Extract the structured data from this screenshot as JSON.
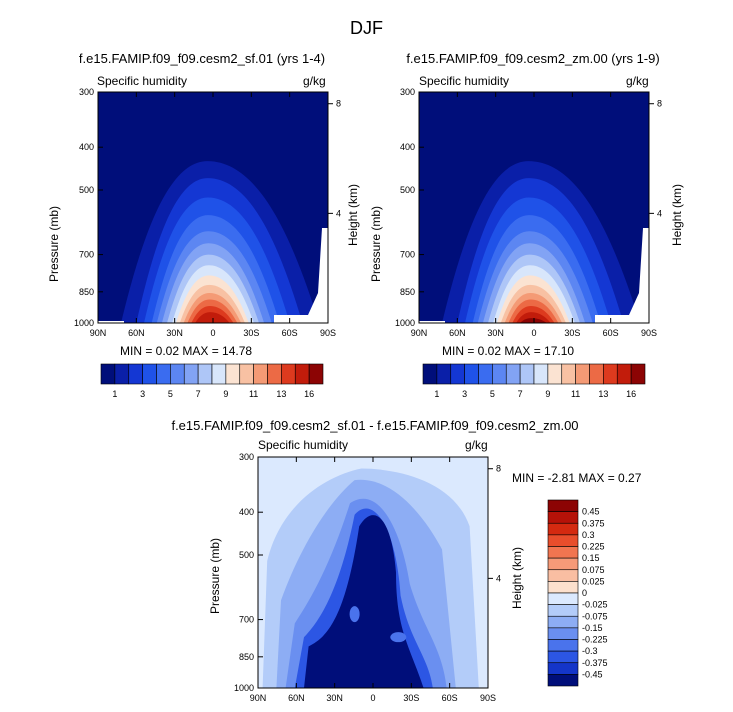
{
  "page": {
    "title": "DJF"
  },
  "colors": {
    "frame": "#000000",
    "deep_blue": "#000e7a",
    "diff_background": "#d5e6ff",
    "white": "#ffffff"
  },
  "chart_data": [
    {
      "type": "heatmap",
      "title": "f.e15.FAMIP.f09_f09.cesm2_sf.01 (yrs 1-4)",
      "variable": "Specific humidity",
      "units": "g/kg",
      "ylabel": "Pressure (mb)",
      "ylabel_right": "Height (km)",
      "x_ticks": [
        "90N",
        "60N",
        "30N",
        "0",
        "30S",
        "60S",
        "90S"
      ],
      "y_ticks": [
        1000,
        850,
        700,
        500,
        400,
        300
      ],
      "height_ticks": [
        4,
        8
      ],
      "ylim": [
        1000,
        300
      ],
      "stats": "MIN =  0.02  MAX = 14.78",
      "min": 0.02,
      "max": 14.78,
      "colorbar_labels": [
        "1",
        "3",
        "5",
        "7",
        "9",
        "11",
        "13",
        "16"
      ],
      "colorbar_colors": [
        "#000e7a",
        "#0a1fa8",
        "#1437d3",
        "#1f52e8",
        "#3a6cf0",
        "#5c86f2",
        "#82a3f4",
        "#aec6f7",
        "#d8e6fb",
        "#fbe3d2",
        "#f8c1a3",
        "#f49a75",
        "#ec6a45",
        "#dd3a1e",
        "#c21c0b",
        "#8c0404"
      ],
      "peak": {
        "lat": 0,
        "pressure": 1000,
        "value": 14.78
      }
    },
    {
      "type": "heatmap",
      "title": "f.e15.FAMIP.f09_f09.cesm2_zm.00 (yrs 1-9)",
      "variable": "Specific humidity",
      "units": "g/kg",
      "ylabel": "Pressure (mb)",
      "ylabel_right": "Height (km)",
      "x_ticks": [
        "90N",
        "60N",
        "30N",
        "0",
        "30S",
        "60S",
        "90S"
      ],
      "y_ticks": [
        1000,
        850,
        700,
        500,
        400,
        300
      ],
      "height_ticks": [
        4,
        8
      ],
      "ylim": [
        1000,
        300
      ],
      "stats": "MIN =  0.02  MAX = 17.10",
      "min": 0.02,
      "max": 17.1,
      "colorbar_labels": [
        "1",
        "3",
        "5",
        "7",
        "9",
        "11",
        "13",
        "16"
      ],
      "colorbar_colors": [
        "#000e7a",
        "#0a1fa8",
        "#1437d3",
        "#1f52e8",
        "#3a6cf0",
        "#5c86f2",
        "#82a3f4",
        "#aec6f7",
        "#d8e6fb",
        "#fbe3d2",
        "#f8c1a3",
        "#f49a75",
        "#ec6a45",
        "#dd3a1e",
        "#c21c0b",
        "#8c0404"
      ],
      "peak": {
        "lat": 0,
        "pressure": 1000,
        "value": 17.1
      }
    },
    {
      "type": "heatmap",
      "title": "f.e15.FAMIP.f09_f09.cesm2_sf.01 - f.e15.FAMIP.f09_f09.cesm2_zm.00",
      "variable": "Specific humidity",
      "units": "g/kg",
      "ylabel": "Pressure (mb)",
      "ylabel_right": "Height (km)",
      "x_ticks": [
        "90N",
        "60N",
        "30N",
        "0",
        "30S",
        "60S",
        "90S"
      ],
      "y_ticks": [
        1000,
        850,
        700,
        500,
        400,
        300
      ],
      "height_ticks": [
        4,
        8
      ],
      "ylim": [
        1000,
        300
      ],
      "stats": "MIN = -2.81  MAX =  0.27",
      "min": -2.81,
      "max": 0.27,
      "colorbar_labels": [
        "0.45",
        "0.375",
        "0.3",
        "0.225",
        "0.15",
        "0.075",
        "0.025",
        "0",
        "-0.025",
        "-0.075",
        "-0.15",
        "-0.225",
        "-0.3",
        "-0.375",
        "-0.45"
      ],
      "colorbar_colors": [
        "#8c0404",
        "#b61208",
        "#d42a10",
        "#e84e2c",
        "#f17550",
        "#f69a78",
        "#f9bea2",
        "#fce0cd",
        "#dbe9fe",
        "#b3ccf9",
        "#8dadf4",
        "#6a8ff0",
        "#4a73ec",
        "#2c56e4",
        "#1435c9",
        "#000e7a"
      ]
    }
  ]
}
